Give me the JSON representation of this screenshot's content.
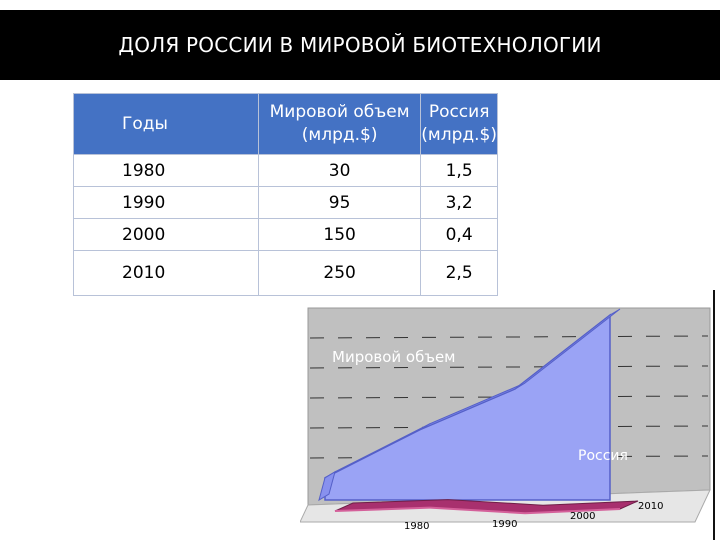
{
  "title": "ДОЛЯ РОССИИ В МИРОВОЙ БИОТЕХНОЛОГИИ",
  "table": {
    "headers": {
      "year": "Годы",
      "world_line1": "Мировой объем",
      "world_line2": "(млрд.$)",
      "russia_line1": "Россия",
      "russia_line2": "(млрд.$)"
    },
    "rows": [
      {
        "year": "1980",
        "world": "30",
        "russia": "1,5"
      },
      {
        "year": "1990",
        "world": "95",
        "russia": "3,2"
      },
      {
        "year": "2000",
        "world": "150",
        "russia": "0,4"
      },
      {
        "year": "2010",
        "world": "250",
        "russia": "2,5"
      }
    ]
  },
  "colors": {
    "title_bg": "#000000",
    "header_bg": "#4472c4",
    "world_fill": "#9aa3f5",
    "world_edge": "#5560c8",
    "russia_fill": "#a8306e",
    "russia_edge": "#6e1f48",
    "wall": "#c0c0c0"
  },
  "chart_data": {
    "type": "area",
    "categories": [
      "1980",
      "1990",
      "2000",
      "2010"
    ],
    "series": [
      {
        "name": "Мировой объем",
        "values": [
          30,
          95,
          150,
          250
        ]
      },
      {
        "name": "Россия",
        "values": [
          1.5,
          3.2,
          0.4,
          2.5
        ]
      }
    ],
    "title": "",
    "xlabel": "",
    "ylabel": "",
    "ylim": [
      0,
      250
    ],
    "grid": true,
    "legend": "none",
    "style": "3d-area"
  }
}
